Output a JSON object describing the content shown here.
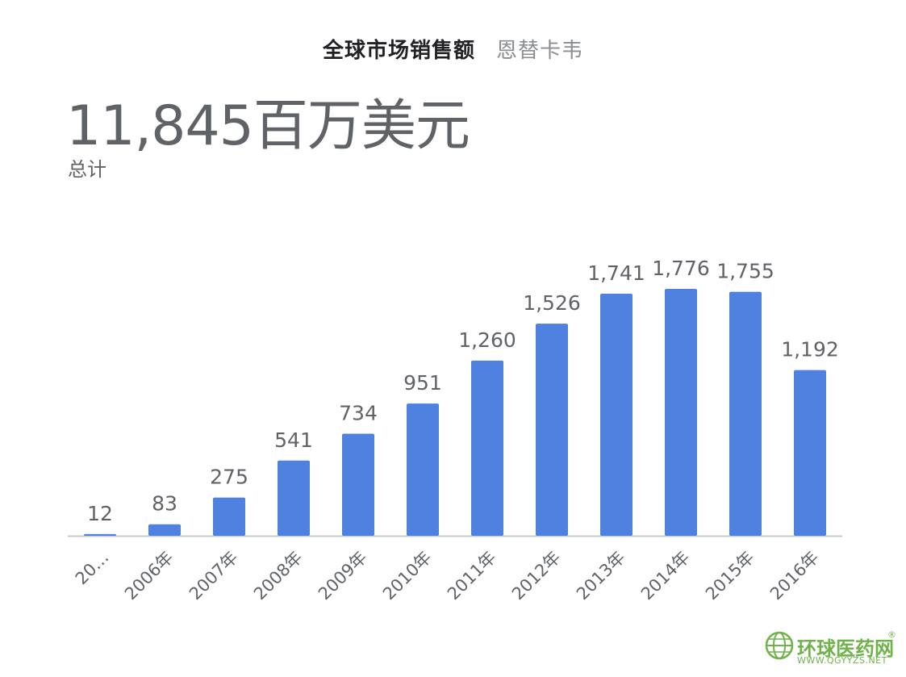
{
  "header": {
    "title": "全球市场销售额",
    "drug_name": "恩替卡韦",
    "total_value": "11,845百万美元",
    "total_label": "总计"
  },
  "chart_data": {
    "type": "bar",
    "categories": [
      "20…",
      "2006年",
      "2007年",
      "2008年",
      "2009年",
      "2010年",
      "2011年",
      "2012年",
      "2013年",
      "2014年",
      "2015年",
      "2016年"
    ],
    "values": [
      12,
      83,
      275,
      541,
      734,
      951,
      1260,
      1526,
      1741,
      1776,
      1755,
      1192
    ],
    "value_labels": [
      "12",
      "83",
      "275",
      "541",
      "734",
      "951",
      "1,260",
      "1,526",
      "1,741",
      "1,776",
      "1,755",
      "1,192"
    ],
    "title": "全球市场销售额",
    "bar_color": "#4f81e1",
    "ylim": [
      0,
      1776
    ],
    "grid": false
  },
  "colors": {
    "bar": "#4f81e1",
    "axis": "#c8c8c8",
    "label": "#5f6368",
    "watermark": "#6fb24a"
  },
  "watermark": {
    "text": "环球医药网",
    "url": "WWW.QGYYZS.NET",
    "reg_mark": "®",
    "icon": "globe-icon"
  }
}
